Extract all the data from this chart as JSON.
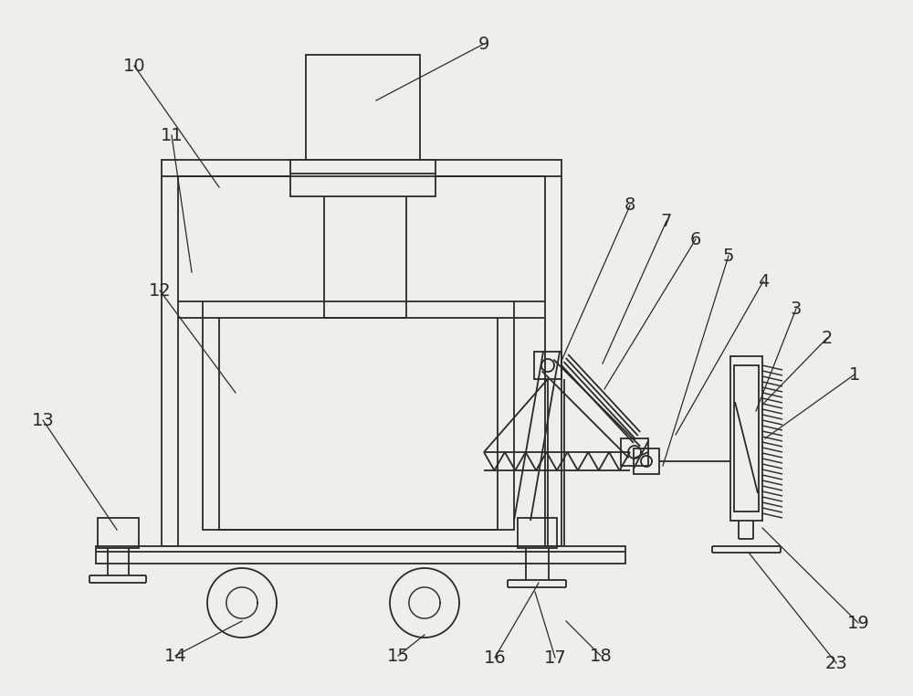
{
  "bg_color": "#f0eeea",
  "line_color": "#2a2a2a",
  "figsize": [
    10.0,
    7.62
  ],
  "dpi": 100,
  "lw": 1.3
}
